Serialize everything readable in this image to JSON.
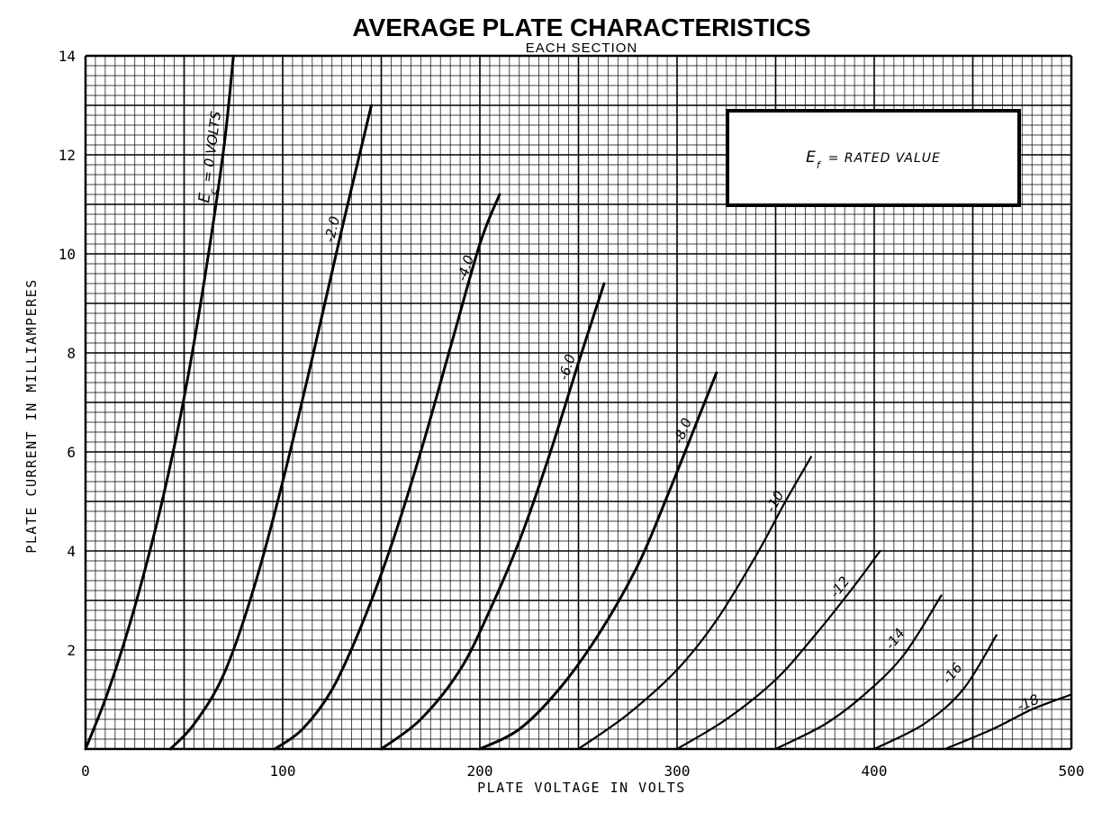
{
  "chart_data": {
    "type": "line",
    "title": "AVERAGE PLATE CHARACTERISTICS",
    "subtitle": "EACH SECTION",
    "xlabel": "PLATE VOLTAGE IN VOLTS",
    "ylabel": "PLATE CURRENT IN MILLIAMPERES",
    "xlim": [
      0,
      500
    ],
    "ylim": [
      0,
      14
    ],
    "x_ticks": [
      "0",
      "100",
      "200",
      "300",
      "400",
      "500"
    ],
    "y_ticks": [
      "2",
      "4",
      "6",
      "8",
      "10",
      "12",
      "14"
    ],
    "grid": true,
    "legend_box": {
      "symbol": "E",
      "subscript": "f",
      "text": "= RATED VALUE",
      "placement": "top-right"
    },
    "series": [
      {
        "name": "E",
        "subscript": "c",
        "label_rest": "= 0 VOLTS",
        "bold": true,
        "points": [
          [
            0,
            0
          ],
          [
            10,
            1
          ],
          [
            20,
            2.2
          ],
          [
            30,
            3.6
          ],
          [
            40,
            5.2
          ],
          [
            50,
            7.1
          ],
          [
            60,
            9.4
          ],
          [
            70,
            12.1
          ],
          [
            75,
            14
          ]
        ]
      },
      {
        "name": "-2.0",
        "label": "-2.0",
        "bold": true,
        "points": [
          [
            43,
            0
          ],
          [
            55,
            0.5
          ],
          [
            70,
            1.5
          ],
          [
            85,
            3.2
          ],
          [
            100,
            5.4
          ],
          [
            115,
            7.9
          ],
          [
            130,
            10.5
          ],
          [
            145,
            13
          ]
        ]
      },
      {
        "name": "-4.0",
        "label": "-4.0",
        "bold": true,
        "points": [
          [
            96,
            0
          ],
          [
            110,
            0.4
          ],
          [
            125,
            1.2
          ],
          [
            140,
            2.5
          ],
          [
            155,
            4.1
          ],
          [
            170,
            6
          ],
          [
            185,
            8.1
          ],
          [
            200,
            10.2
          ],
          [
            210,
            11.2
          ]
        ]
      },
      {
        "name": "-6.0",
        "label": "-6.0",
        "bold": true,
        "points": [
          [
            150,
            0
          ],
          [
            170,
            0.6
          ],
          [
            190,
            1.6
          ],
          [
            205,
            2.8
          ],
          [
            220,
            4.2
          ],
          [
            235,
            5.9
          ],
          [
            250,
            7.8
          ],
          [
            263,
            9.4
          ]
        ]
      },
      {
        "name": "-8.0",
        "label": "-8.0",
        "bold": true,
        "points": [
          [
            200,
            0
          ],
          [
            220,
            0.4
          ],
          [
            240,
            1.2
          ],
          [
            260,
            2.3
          ],
          [
            280,
            3.7
          ],
          [
            295,
            5.1
          ],
          [
            310,
            6.6
          ],
          [
            320,
            7.6
          ]
        ]
      },
      {
        "name": "-10",
        "label": "-10",
        "bold": false,
        "points": [
          [
            250,
            0
          ],
          [
            275,
            0.7
          ],
          [
            300,
            1.6
          ],
          [
            320,
            2.6
          ],
          [
            340,
            3.9
          ],
          [
            355,
            5
          ],
          [
            368,
            5.9
          ]
        ]
      },
      {
        "name": "-12",
        "label": "-12",
        "bold": false,
        "points": [
          [
            300,
            0
          ],
          [
            325,
            0.6
          ],
          [
            350,
            1.4
          ],
          [
            370,
            2.3
          ],
          [
            390,
            3.3
          ],
          [
            403,
            4
          ]
        ]
      },
      {
        "name": "-14",
        "label": "-14",
        "bold": false,
        "points": [
          [
            350,
            0
          ],
          [
            375,
            0.5
          ],
          [
            395,
            1.1
          ],
          [
            415,
            1.9
          ],
          [
            434,
            3.1
          ]
        ]
      },
      {
        "name": "-16",
        "label": "-16",
        "bold": false,
        "points": [
          [
            400,
            0
          ],
          [
            425,
            0.5
          ],
          [
            445,
            1.2
          ],
          [
            462,
            2.3
          ]
        ]
      },
      {
        "name": "-18",
        "label": "-18",
        "bold": false,
        "points": [
          [
            436,
            0
          ],
          [
            460,
            0.4
          ],
          [
            480,
            0.8
          ],
          [
            500,
            1.1
          ]
        ]
      }
    ]
  }
}
